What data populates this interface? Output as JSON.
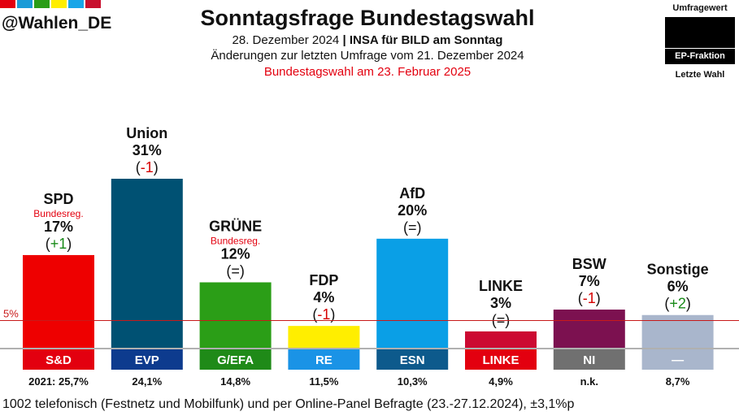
{
  "handle": "@Wahlen_DE",
  "brand_colors": [
    "#e3000f",
    "#1a9bd7",
    "#2a9d16",
    "#ffee00",
    "#19a6e8",
    "#c8102e"
  ],
  "header": {
    "title": "Sonntagsfrage Bundestagswahl",
    "date": "28. Dezember 2024",
    "separator": "|",
    "pollster": "INSA für BILD am Sonntag",
    "changes_note": "Änderungen zur letzten Umfrage vom 21. Dezember 2024",
    "election_note": "Bundestagswahl am 23. Februar 2025"
  },
  "legend": {
    "top_label": "Umfragewert",
    "middle_label": "EP-Fraktion",
    "bottom_label": "Letzte Wahl"
  },
  "chart_data": {
    "type": "bar",
    "title": "Sonntagsfrage Bundestagswahl",
    "threshold": {
      "value": 5,
      "label": "5%"
    },
    "ylim": [
      0,
      31
    ],
    "last_election_prefix": "2021: ",
    "parties": [
      {
        "name": "SPD",
        "value": 17,
        "value_label": "17%",
        "change": "+1",
        "change_type": "plus",
        "note": "Bundesreg.",
        "ep_group": "S&D",
        "last_election": "25,7%",
        "color": "#ee0000",
        "group_color": "#e3000f"
      },
      {
        "name": "Union",
        "value": 31,
        "value_label": "31%",
        "change": "-1",
        "change_type": "minus",
        "note": "",
        "ep_group": "EVP",
        "last_election": "24,1%",
        "color": "#005173",
        "group_color": "#0d3b8e"
      },
      {
        "name": "GRÜNE",
        "value": 12,
        "value_label": "12%",
        "change": "=",
        "change_type": "equal",
        "note": "Bundesreg.",
        "ep_group": "G/EFA",
        "last_election": "14,8%",
        "color": "#2b9e17",
        "group_color": "#1f8a18"
      },
      {
        "name": "FDP",
        "value": 4,
        "value_label": "4%",
        "change": "-1",
        "change_type": "minus",
        "note": "",
        "ep_group": "RE",
        "last_election": "11,5%",
        "color": "#ffee00",
        "group_color": "#1a93e6"
      },
      {
        "name": "AfD",
        "value": 20,
        "value_label": "20%",
        "change": "=",
        "change_type": "equal",
        "note": "",
        "ep_group": "ESN",
        "last_election": "10,3%",
        "color": "#0a9fe6",
        "group_color": "#0d5a8c"
      },
      {
        "name": "LINKE",
        "value": 3,
        "value_label": "3%",
        "change": "=",
        "change_type": "equal",
        "note": "",
        "ep_group": "LINKE",
        "last_election": "4,9%",
        "color": "#cc0a32",
        "group_color": "#e3000f"
      },
      {
        "name": "BSW",
        "value": 7,
        "value_label": "7%",
        "change": "-1",
        "change_type": "minus",
        "note": "",
        "ep_group": "NI",
        "last_election": "n.k.",
        "color": "#7c1150",
        "group_color": "#707070"
      },
      {
        "name": "Sonstige",
        "value": 6,
        "value_label": "6%",
        "change": "+2",
        "change_type": "plus",
        "note": "",
        "ep_group": "—",
        "last_election": "8,7%",
        "color": "#a9b6cc",
        "group_color": "#a9b6cc"
      }
    ],
    "change_colors": {
      "plus": "#188a18",
      "minus": "#d60000",
      "equal": "#111111"
    },
    "note_color": "#e3000f"
  },
  "footer": "1002 telefonisch (Festnetz und Mobilfunk) und per Online-Panel Befragte (23.-27.12.2024), ±3,1%p"
}
